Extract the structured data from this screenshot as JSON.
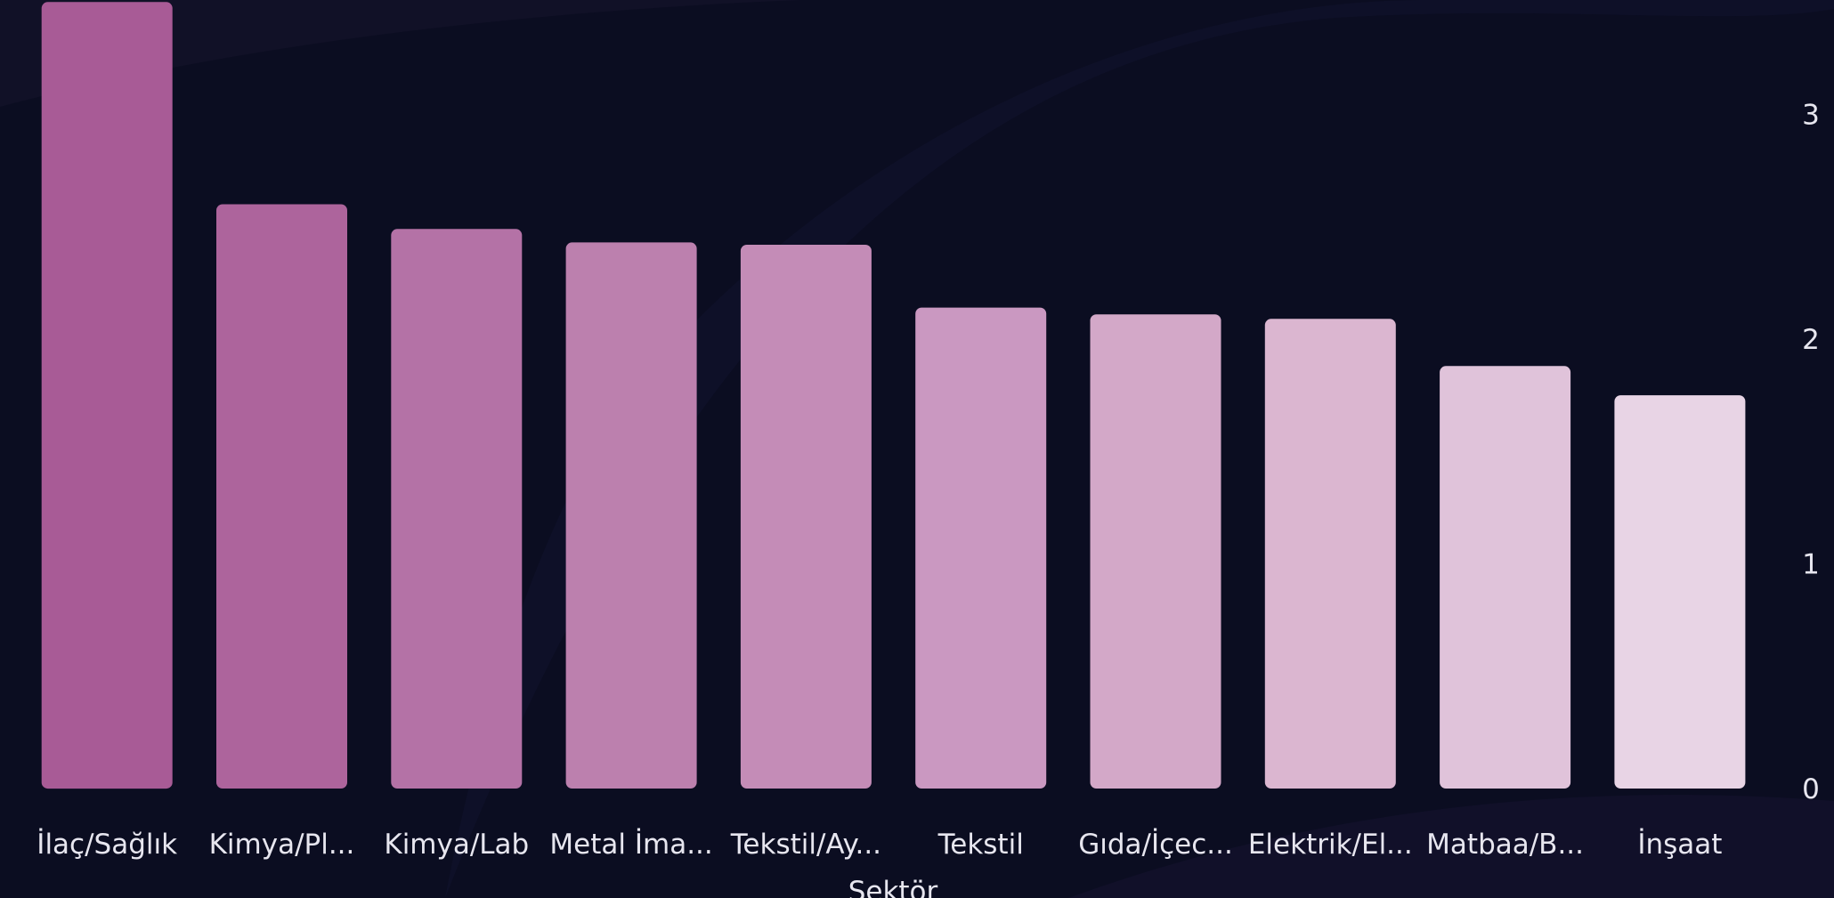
{
  "chart_data": {
    "type": "bar",
    "categories": [
      "İlaç/Sağlık",
      "Kimya/Pl...",
      "Kimya/Lab",
      "Metal İma...",
      "Tekstil/Ay...",
      "Tekstil",
      "Gıda/İçec...",
      "Elektrik/El...",
      "Matbaa/B...",
      "İnşaat"
    ],
    "values": [
      3.5,
      2.6,
      2.49,
      2.43,
      2.42,
      2.14,
      2.11,
      2.09,
      1.88,
      1.75
    ],
    "colors": [
      "#a85b96",
      "#ad649c",
      "#b472a6",
      "#bc80ae",
      "#c48cb7",
      "#ca98c1",
      "#d3a8c8",
      "#dbb6d0",
      "#e0c3da",
      "#e8d4e5"
    ],
    "ylim": [
      0,
      3.5
    ],
    "y_ticks": [
      "0",
      "1",
      "2",
      "3"
    ],
    "y_axis_side": "right",
    "xlabel": "Sektör",
    "ylabel": "",
    "grid": false,
    "legend": "none"
  }
}
